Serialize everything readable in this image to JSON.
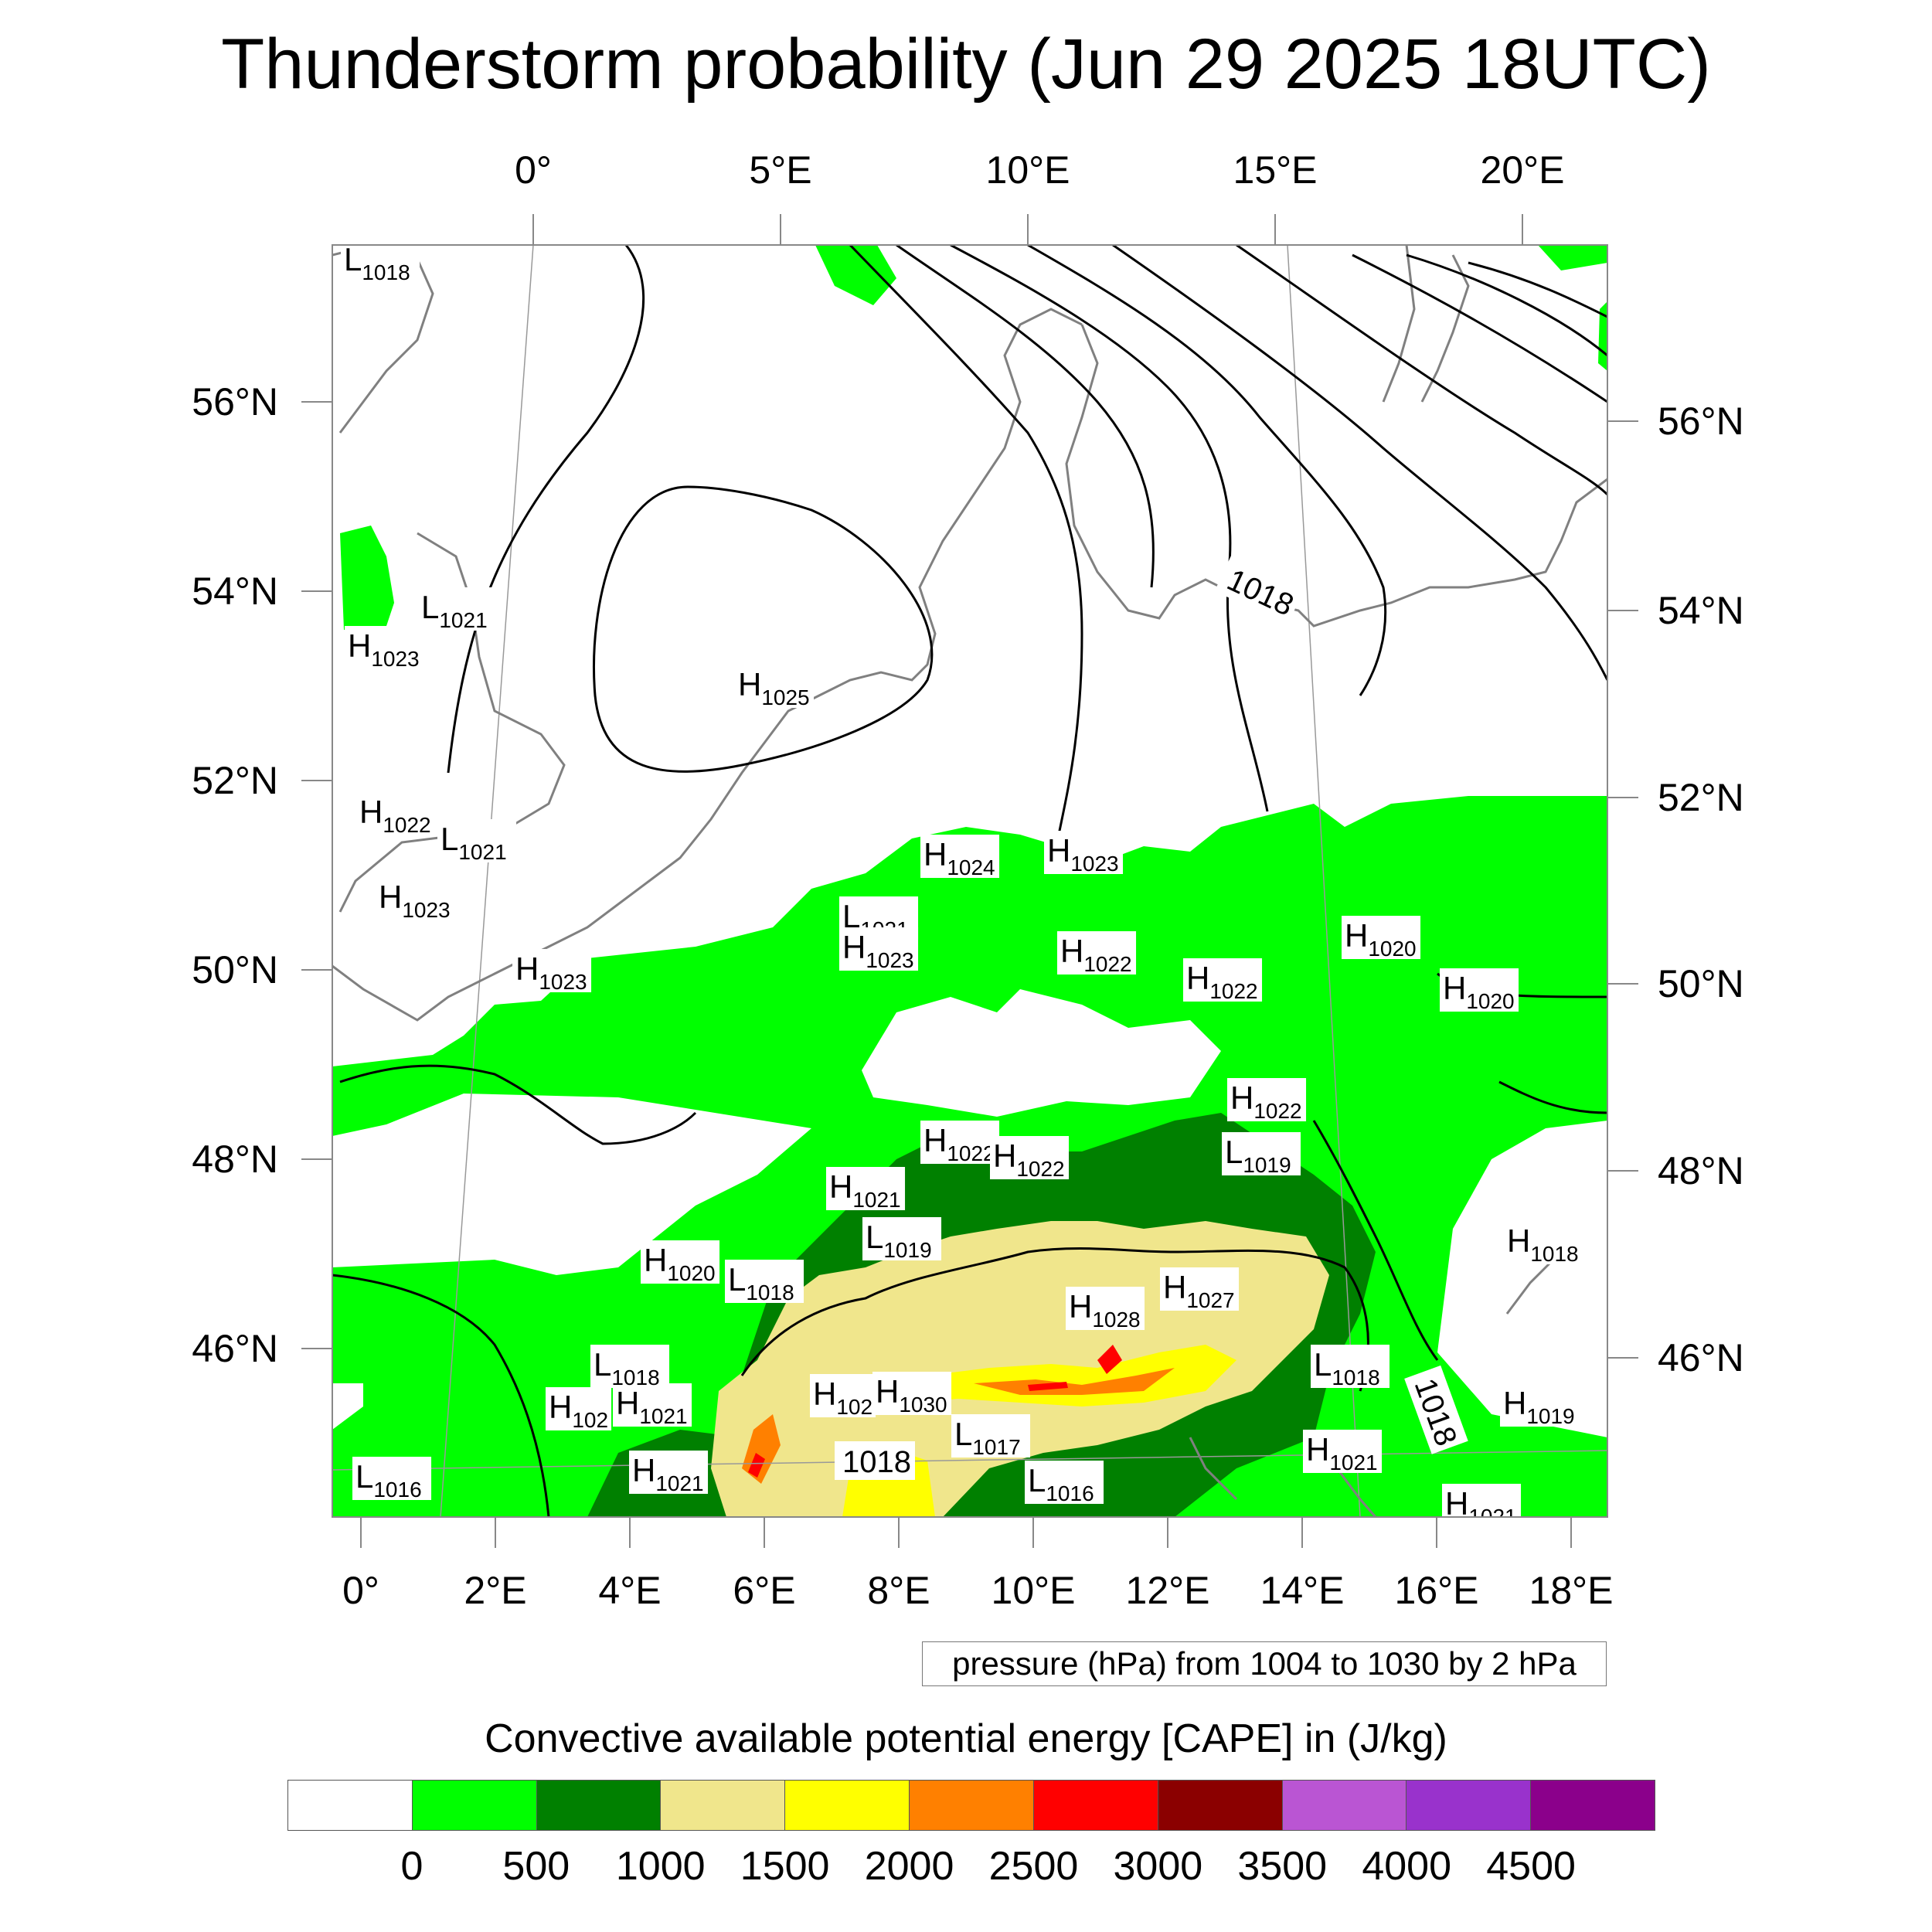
{
  "title": "Thunderstorm probability (Jun 29 2025 18UTC)",
  "top_lon_labels": [
    "0°",
    "5°E",
    "10°E",
    "15°E",
    "20°E"
  ],
  "bottom_lon_labels": [
    "0°",
    "2°E",
    "4°E",
    "6°E",
    "8°E",
    "10°E",
    "12°E",
    "14°E",
    "16°E",
    "18°E"
  ],
  "left_lat_labels": [
    "56°N",
    "54°N",
    "52°N",
    "50°N",
    "48°N",
    "46°N"
  ],
  "right_lat_labels": [
    "56°N",
    "54°N",
    "52°N",
    "50°N",
    "48°N",
    "46°N"
  ],
  "pressure_info": "pressure (hPa) from 1004 to 1030 by 2 hPa",
  "colorbar": {
    "title": "Convective available potential energy [CAPE] in (J/kg)",
    "ticks": [
      "0",
      "500",
      "1000",
      "1500",
      "2000",
      "2500",
      "3000",
      "3500",
      "4000",
      "4500"
    ],
    "colors": [
      "#ffffff",
      "#00ff00",
      "#008000",
      "#f0e68c",
      "#ffff00",
      "#ff8000",
      "#ff0000",
      "#8b0000",
      "#ba55d3",
      "#9932cc",
      "#8b008b"
    ]
  },
  "pressure_centers": [
    {
      "type": "L",
      "value": "1018"
    },
    {
      "type": "L",
      "value": "1021"
    },
    {
      "type": "H",
      "value": "1023"
    },
    {
      "type": "H",
      "value": "1025"
    },
    {
      "type": "H",
      "value": "1022"
    },
    {
      "type": "L",
      "value": "1021"
    },
    {
      "type": "H",
      "value": "1023"
    },
    {
      "type": "H",
      "value": "1024"
    },
    {
      "type": "H",
      "value": "1023"
    },
    {
      "type": "L",
      "value": "1021"
    },
    {
      "type": "H",
      "value": "1023"
    },
    {
      "type": "H",
      "value": "1023"
    },
    {
      "type": "H",
      "value": "1022"
    },
    {
      "type": "H",
      "value": "1022"
    },
    {
      "type": "H",
      "value": "1020"
    },
    {
      "type": "H",
      "value": "1020"
    },
    {
      "type": "H",
      "value": "1022"
    },
    {
      "type": "H",
      "value": "1022"
    },
    {
      "type": "H",
      "value": "1022"
    },
    {
      "type": "L",
      "value": "1019"
    },
    {
      "type": "H",
      "value": "1021"
    },
    {
      "type": "L",
      "value": "1019"
    },
    {
      "type": "H",
      "value": "1020"
    },
    {
      "type": "L",
      "value": "1018"
    },
    {
      "type": "H",
      "value": "1027"
    },
    {
      "type": "H",
      "value": "1028"
    },
    {
      "type": "H",
      "value": "1018"
    },
    {
      "type": "L",
      "value": "1018"
    },
    {
      "type": "H",
      "value": "102"
    },
    {
      "type": "H",
      "value": "1021"
    },
    {
      "type": "H",
      "value": "102"
    },
    {
      "type": "H",
      "value": "1030"
    },
    {
      "type": "L",
      "value": "1018"
    },
    {
      "type": "H",
      "value": "1019"
    },
    {
      "type": "L",
      "value": "1017"
    },
    {
      "type": "H",
      "value": "1021"
    },
    {
      "type": "L",
      "value": "1016"
    },
    {
      "type": "H",
      "value": "1021"
    },
    {
      "type": "L",
      "value": "1016"
    },
    {
      "type": "H",
      "value": "1021"
    }
  ],
  "isobar_labels": [
    "1018",
    "1018",
    "1018"
  ]
}
